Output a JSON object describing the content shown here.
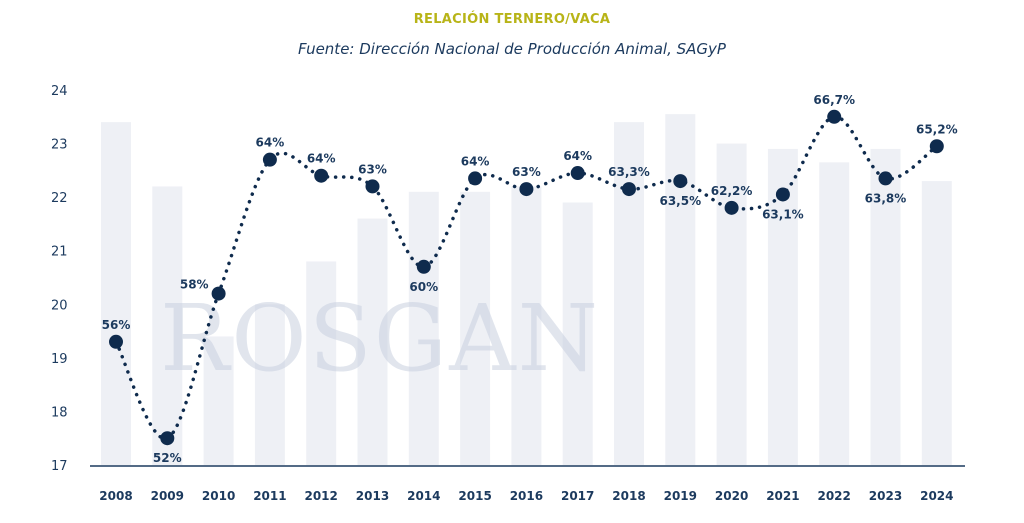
{
  "header": {
    "title": "RELACIÓN TERNERO/VACA",
    "subtitle": "Fuente: Dirección Nacional de Producción Animal, SAGyP"
  },
  "watermark": {
    "text": "ROSGAN"
  },
  "colors": {
    "title": "#b8b418",
    "text": "#1c3a5e",
    "bar": "#eef0f5",
    "line": "#0f2b4d",
    "axis": "#1c3a5e",
    "watermark": "#c9d1e0"
  },
  "chart_data": {
    "type": "line",
    "title": "RELACIÓN TERNERO/VACA",
    "subtitle": "Fuente: Dirección Nacional de Producción Animal, SAGyP",
    "categories": [
      "2008",
      "2009",
      "2010",
      "2011",
      "2012",
      "2013",
      "2014",
      "2015",
      "2016",
      "2017",
      "2018",
      "2019",
      "2020",
      "2021",
      "2022",
      "2023",
      "2024"
    ],
    "ylim": [
      17,
      24
    ],
    "yticks": [
      17,
      18,
      19,
      20,
      21,
      22,
      23,
      24
    ],
    "series": [
      {
        "values": [
          19.3,
          17.5,
          20.2,
          22.7,
          22.4,
          22.2,
          20.7,
          22.35,
          22.15,
          22.45,
          22.15,
          22.3,
          21.8,
          22.05,
          23.5,
          22.35,
          22.95
        ],
        "labels": [
          "56%",
          "52%",
          "58%",
          "64%",
          "64%",
          "63%",
          "60%",
          "64%",
          "63%",
          "64%",
          "63,3%",
          "63,5%",
          "62,2%",
          "63,1%",
          "66,7%",
          "63,8%",
          "65,2%"
        ],
        "label_pos": [
          "above",
          "below",
          "left",
          "above",
          "above",
          "above",
          "below",
          "above",
          "above",
          "above",
          "above",
          "below",
          "above",
          "below",
          "above",
          "below",
          "above"
        ]
      }
    ],
    "background_bars": [
      23.4,
      22.2,
      19.4,
      20.0,
      20.8,
      21.6,
      22.1,
      22.1,
      22.2,
      21.9,
      23.4,
      23.55,
      23.0,
      22.9,
      22.65,
      22.9,
      22.3
    ],
    "grid": false,
    "legend": "none"
  }
}
